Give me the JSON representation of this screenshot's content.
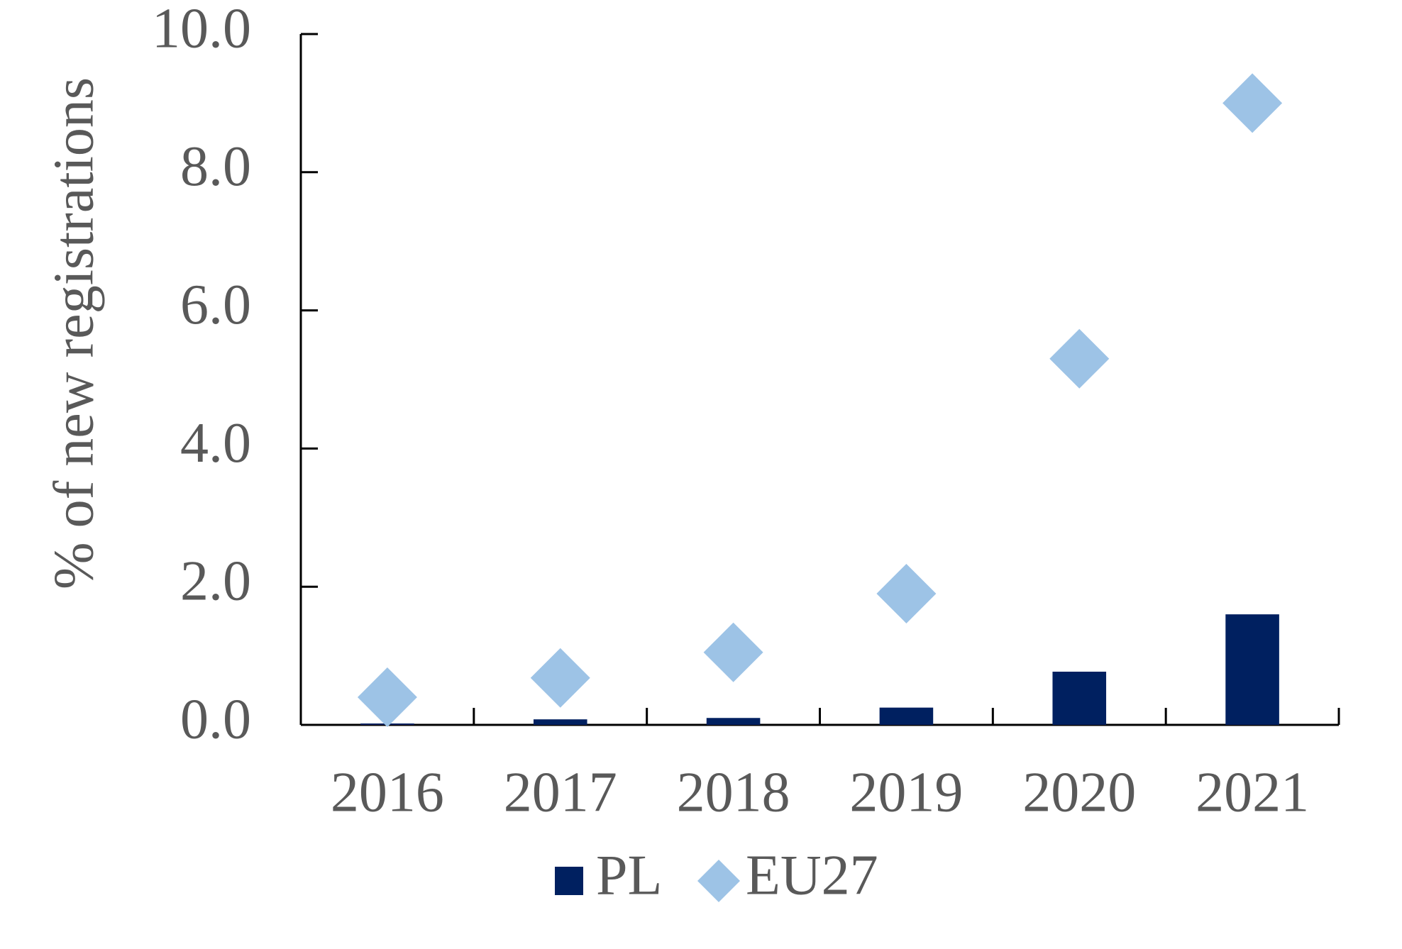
{
  "chart_data": {
    "type": "bar",
    "y_label": "% of new registrations",
    "categories": [
      "2016",
      "2017",
      "2018",
      "2019",
      "2020",
      "2021"
    ],
    "series": [
      {
        "name": "PL",
        "type": "bar",
        "color": "#002060",
        "values": [
          0.02,
          0.08,
          0.1,
          0.25,
          0.77,
          1.6
        ]
      },
      {
        "name": "EU27",
        "type": "scatter",
        "marker": "diamond",
        "color": "#9dc3e6",
        "values": [
          0.4,
          0.68,
          1.05,
          1.9,
          5.3,
          9.0
        ]
      }
    ],
    "ylim": [
      0,
      10
    ],
    "yticks": [
      {
        "value": 0,
        "label": "0.0"
      },
      {
        "value": 2,
        "label": "2.0"
      },
      {
        "value": 4,
        "label": "4.0"
      },
      {
        "value": 6,
        "label": "6.0"
      },
      {
        "value": 8,
        "label": "8.0"
      },
      {
        "value": 10,
        "label": "10.0"
      }
    ],
    "grid": false,
    "legend": "bottom"
  }
}
